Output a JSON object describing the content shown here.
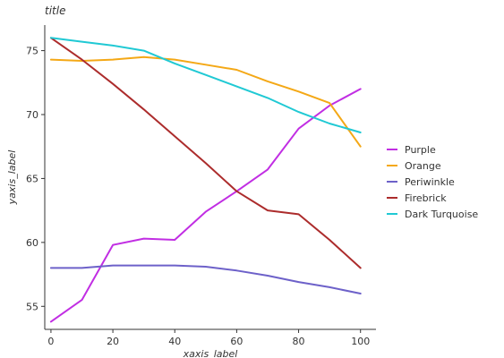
{
  "chart_data": {
    "type": "line",
    "title": "title",
    "xlabel": "xaxis_label",
    "ylabel": "yaxis_label",
    "xlim": [
      -2,
      105
    ],
    "ylim": [
      53.2,
      77
    ],
    "x_ticks": [
      0,
      20,
      40,
      60,
      80,
      100
    ],
    "y_ticks": [
      55,
      60,
      65,
      70,
      75
    ],
    "grid": false,
    "legend_position": "right",
    "series": [
      {
        "name": "Purple",
        "color": "#c12ee3",
        "x": [
          0,
          10,
          20,
          30,
          40,
          50,
          60,
          70,
          80,
          90,
          100
        ],
        "y": [
          53.8,
          55.5,
          59.8,
          60.3,
          60.2,
          62.4,
          64.0,
          65.7,
          68.9,
          70.7,
          72.0
        ]
      },
      {
        "name": "Orange",
        "color": "#f4a816",
        "x": [
          0,
          10,
          20,
          30,
          40,
          50,
          60,
          70,
          80,
          90,
          100
        ],
        "y": [
          74.3,
          74.2,
          74.3,
          74.5,
          74.3,
          73.9,
          73.5,
          72.6,
          71.8,
          70.9,
          67.5
        ]
      },
      {
        "name": "Periwinkle",
        "color": "#6d61c9",
        "x": [
          0,
          10,
          20,
          30,
          40,
          50,
          60,
          70,
          80,
          90,
          100
        ],
        "y": [
          58.0,
          58.0,
          58.2,
          58.2,
          58.2,
          58.1,
          57.8,
          57.4,
          56.9,
          56.5,
          56.0
        ]
      },
      {
        "name": "Firebrick",
        "color": "#ac2c2c",
        "x": [
          0,
          10,
          20,
          30,
          40,
          50,
          60,
          70,
          80,
          90,
          100
        ],
        "y": [
          76.0,
          74.3,
          72.4,
          70.4,
          68.3,
          66.2,
          64.0,
          62.5,
          62.2,
          60.2,
          58.0
        ]
      },
      {
        "name": "Dark Turquoise",
        "color": "#20c9d4",
        "x": [
          0,
          10,
          20,
          30,
          40,
          50,
          60,
          70,
          80,
          90,
          100
        ],
        "y": [
          76.0,
          75.7,
          75.4,
          75.0,
          74.0,
          73.1,
          72.2,
          71.3,
          70.2,
          69.3,
          68.6
        ]
      }
    ]
  }
}
